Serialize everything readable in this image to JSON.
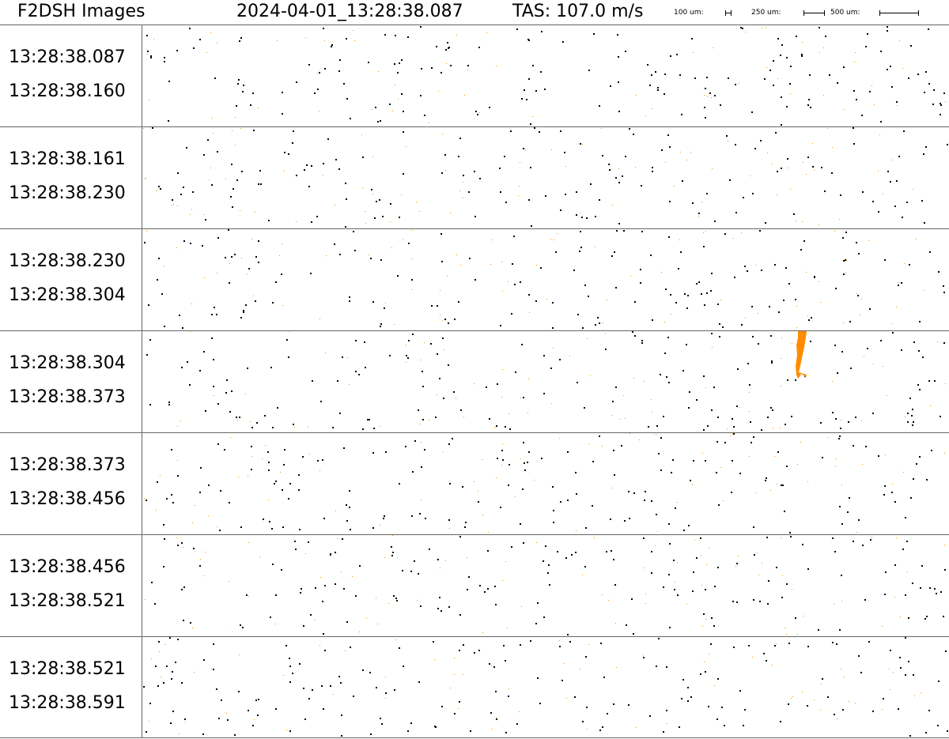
{
  "header": {
    "app_title": "F2DSH Images",
    "timestamp": "2024-04-01_13:28:38.087",
    "tas": "TAS: 107.0 m/s",
    "scale_bars": [
      {
        "label": "100 um:"
      },
      {
        "label": "250 um:"
      },
      {
        "label": "500 um:"
      }
    ]
  },
  "strips": [
    {
      "start": "13:28:38.087",
      "end": "13:28:38.160"
    },
    {
      "start": "13:28:38.161",
      "end": "13:28:38.230"
    },
    {
      "start": "13:28:38.230",
      "end": "13:28:38.304"
    },
    {
      "start": "13:28:38.304",
      "end": "13:28:38.373"
    },
    {
      "start": "13:28:38.373",
      "end": "13:28:38.456"
    },
    {
      "start": "13:28:38.456",
      "end": "13:28:38.521"
    },
    {
      "start": "13:28:38.521",
      "end": "13:28:38.591"
    }
  ],
  "colors": {
    "dot_dark": "#000000",
    "dot_orange": "#ff8c00",
    "divider": "#666666"
  }
}
